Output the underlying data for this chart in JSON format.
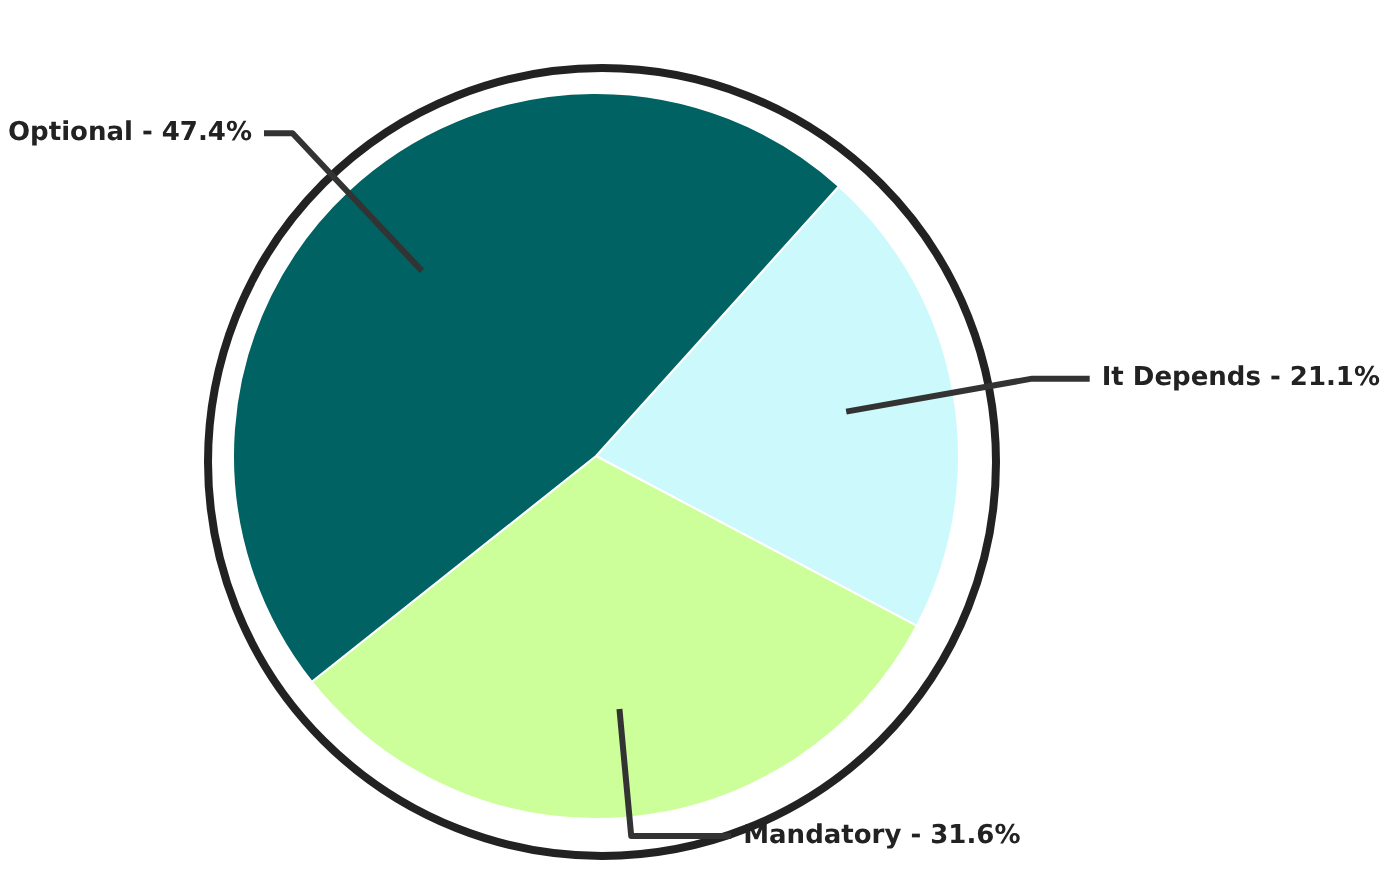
{
  "chart_data": {
    "type": "pie",
    "categories": [
      "It Depends",
      "Mandatory",
      "Optional"
    ],
    "values": [
      21.1,
      31.6,
      47.4
    ],
    "colors": [
      "#ccf9fb",
      "#ccff99",
      "#006262"
    ],
    "value_labels": [
      "21.1%",
      "31.6%",
      "47.4%"
    ],
    "legend": false
  }
}
